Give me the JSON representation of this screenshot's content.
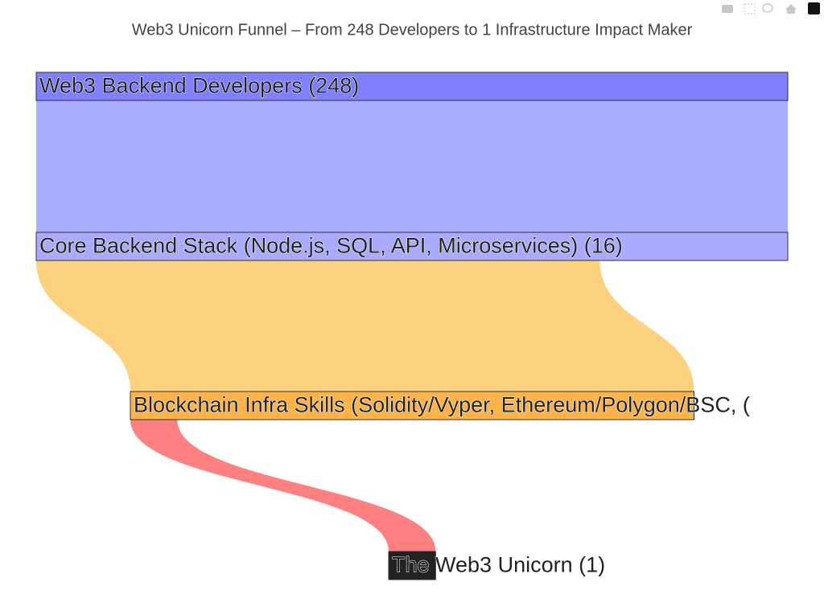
{
  "chart_data": {
    "type": "sankey",
    "title": "Web3 Unicorn Funnel – From 248 Developers to 1 Infrastructure Impact Maker",
    "nodes": [
      {
        "label": "Web3 Backend Developers (248)",
        "color": "#7f7fff"
      },
      {
        "label": "Core Backend Stack (Node.js, SQL, API, Microservices) (16)",
        "color": "#aaaaff"
      },
      {
        "label": "Blockchain Infra Skills (Solidity/Vyper, Ethereum/Polygon/BSC, (",
        "color": "#fdb347"
      },
      {
        "label": "The Web3 Unicorn (1)",
        "color": "#222222"
      }
    ],
    "links": [
      {
        "source": 0,
        "target": 1,
        "value": 16,
        "color": "#aaaeff"
      },
      {
        "source": 1,
        "target": 2,
        "value": 12,
        "color": "#fdd27f"
      },
      {
        "source": 2,
        "target": 3,
        "value": 1,
        "color": "#ff8080"
      }
    ]
  }
}
